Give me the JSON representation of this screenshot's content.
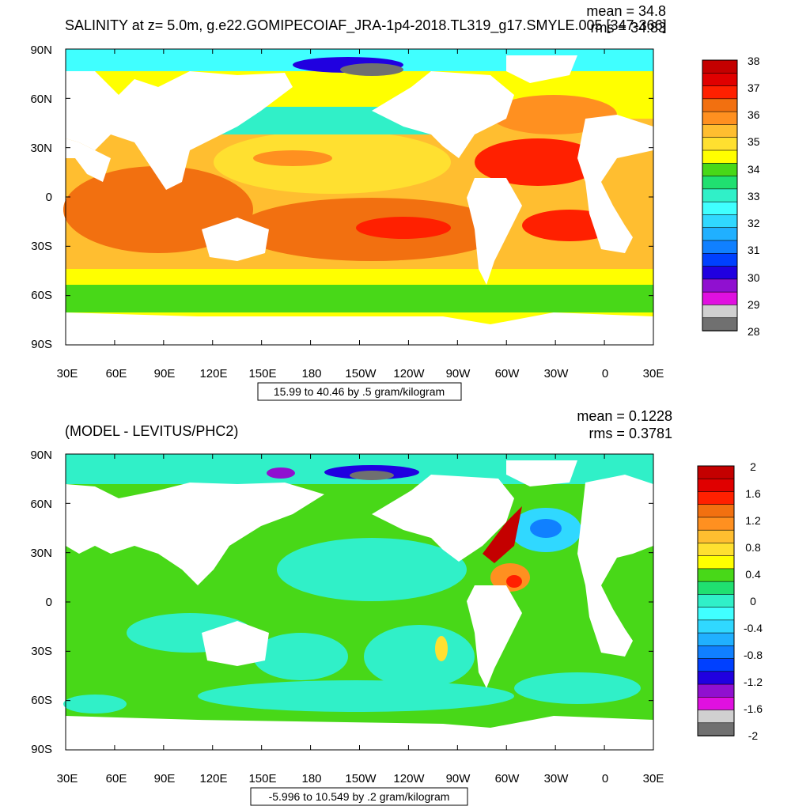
{
  "top_panel": {
    "title": "SALINITY at z=   5.0m, g.e22.GOMIPECOIAF_JRA-1p4-2018.TL319_g17.SMYLE.005 [347-366]",
    "mean_label": "mean = 34.8",
    "rms_label": "rms = 34.83",
    "info_box": "15.99 to 40.46 by .5 gram/kilogram",
    "lat_ticks": [
      "90N",
      "60N",
      "30N",
      "0",
      "30S",
      "60S",
      "90S"
    ],
    "lon_ticks": [
      "30E",
      "60E",
      "90E",
      "120E",
      "150E",
      "180",
      "150W",
      "120W",
      "90W",
      "60W",
      "30W",
      "0",
      "30E"
    ],
    "colorbar_labels": [
      "38",
      "37",
      "36",
      "35",
      "34",
      "33",
      "32",
      "31",
      "30",
      "29",
      "28"
    ],
    "colorbar_colors": [
      "#c40000",
      "#e00000",
      "#ff2000",
      "#f27010",
      "#ff9020",
      "#ffbe30",
      "#ffe030",
      "#ffff00",
      "#48d818",
      "#20e070",
      "#30f0c8",
      "#40ffff",
      "#30d8ff",
      "#20b0ff",
      "#1080ff",
      "#0040ff",
      "#2000e0",
      "#9010d0",
      "#e010e0",
      "#d0d0d0",
      "#707070"
    ]
  },
  "bottom_panel": {
    "title": "(MODEL - LEVITUS/PHC2)",
    "mean_label": "mean = 0.1228",
    "rms_label": "rms = 0.3781",
    "info_box": "-5.996 to 10.549 by .2 gram/kilogram",
    "lat_ticks": [
      "90N",
      "60N",
      "30N",
      "0",
      "30S",
      "60S",
      "90S"
    ],
    "lon_ticks": [
      "30E",
      "60E",
      "90E",
      "120E",
      "150E",
      "180",
      "150W",
      "120W",
      "90W",
      "60W",
      "30W",
      "0",
      "30E"
    ],
    "colorbar_labels": [
      "2",
      "1.6",
      "1.2",
      "0.8",
      "0.4",
      "0",
      "-0.4",
      "-0.8",
      "-1.2",
      "-1.6",
      "-2"
    ],
    "colorbar_colors": [
      "#c40000",
      "#e00000",
      "#ff2000",
      "#f27010",
      "#ff9020",
      "#ffbe30",
      "#ffe030",
      "#ffff00",
      "#48d818",
      "#20e070",
      "#30f0c8",
      "#40ffff",
      "#30d8ff",
      "#20b0ff",
      "#1080ff",
      "#0040ff",
      "#2000e0",
      "#9010d0",
      "#e010e0",
      "#d0d0d0",
      "#707070"
    ]
  }
}
